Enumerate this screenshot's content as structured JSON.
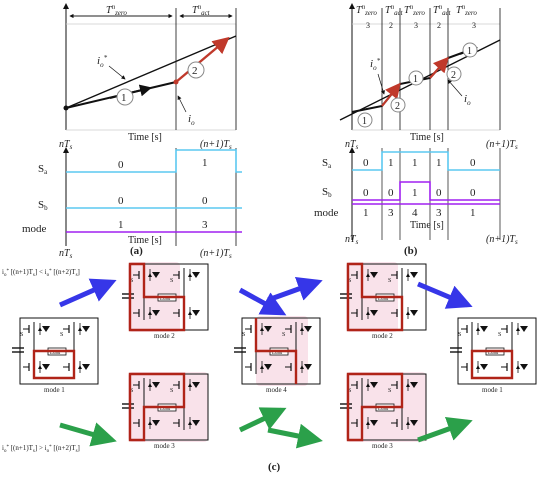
{
  "panel_a": {
    "top_labels": [
      "T^n_zero",
      "T^n_act"
    ],
    "signals": {
      "io_star": "i_o*",
      "io": "i_o"
    },
    "mode_markers": [
      "1",
      "2"
    ],
    "time_label": "Time [s]",
    "x_start": "nT_s",
    "x_end": "(n+1)T_s",
    "row_labels": {
      "sa": "S_a",
      "sb": "S_b",
      "mode": "mode"
    },
    "sa_values": [
      "0",
      "1"
    ],
    "sb_values": [
      "0",
      "0"
    ],
    "mode_values": [
      "1",
      "3"
    ],
    "caption": "(a)"
  },
  "panel_b": {
    "top_labels": [
      "T^n_zero",
      "T^n_act",
      "T^n_zero",
      "T^n_act",
      "T^n_zero"
    ],
    "top_fractions": [
      "3",
      "2",
      "3",
      "2",
      "3"
    ],
    "signals": {
      "io_star": "i_o*",
      "io": "i_o"
    },
    "mode_markers": [
      "1",
      "2",
      "1",
      "2",
      "1"
    ],
    "time_label": "Time [s]",
    "x_start": "nT_s",
    "x_end": "(n+1)T_s",
    "row_labels": {
      "sa": "S_a",
      "sb": "S_b",
      "mode": "mode"
    },
    "sa_values": [
      "0",
      "1",
      "1",
      "1",
      "0"
    ],
    "sb_values": [
      "0",
      "0",
      "1",
      "0",
      "0"
    ],
    "mode_values": [
      "1",
      "3",
      "4",
      "3",
      "1"
    ],
    "caption": "(b)"
  },
  "panel_c": {
    "condition_top": "i_o* [(n+1)T_s] < i_o* [(n+2)T_s]",
    "condition_bottom": "i_o* [(n+1)T_s] > i_o* [(n+2)T_s]",
    "load_label": "Load",
    "switch_label": "S",
    "mode_labels": [
      "mode 1",
      "mode 2",
      "mode 3",
      "mode 4",
      "mode 2",
      "mode 3",
      "mode 1"
    ],
    "caption": "(c)"
  },
  "colors": {
    "cyan": "#5bc8f0",
    "purple": "#a020f0",
    "red_path": "#b02418",
    "blue_arrow": "#3636e8",
    "green_arrow": "#2ba04a"
  }
}
